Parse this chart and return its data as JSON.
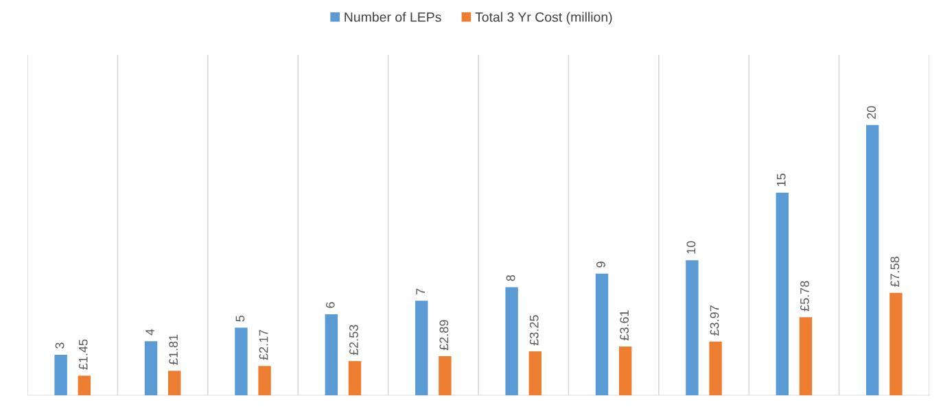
{
  "chart_data": {
    "type": "bar",
    "categories": [
      null,
      null,
      null,
      null,
      null,
      null,
      null,
      null,
      null,
      null
    ],
    "series": [
      {
        "name": "Number of LEPs",
        "color": "#5b9bd5",
        "values": [
          3,
          4,
          5,
          6,
          7,
          8,
          9,
          10,
          15,
          20
        ],
        "value_labels": [
          "3",
          "4",
          "5",
          "6",
          "7",
          "8",
          "9",
          "10",
          "15",
          "20"
        ]
      },
      {
        "name": "Total 3 Yr Cost (million)",
        "color": "#ed7d31",
        "values": [
          1.45,
          1.81,
          2.17,
          2.53,
          2.89,
          3.25,
          3.61,
          3.97,
          5.78,
          7.58
        ],
        "value_labels": [
          "£1.45",
          "£1.81",
          "£2.17",
          "£2.53",
          "£2.89",
          "£3.25",
          "£3.61",
          "£3.97",
          "£5.78",
          "£7.58"
        ]
      }
    ],
    "grid": "x",
    "legend": "top"
  }
}
